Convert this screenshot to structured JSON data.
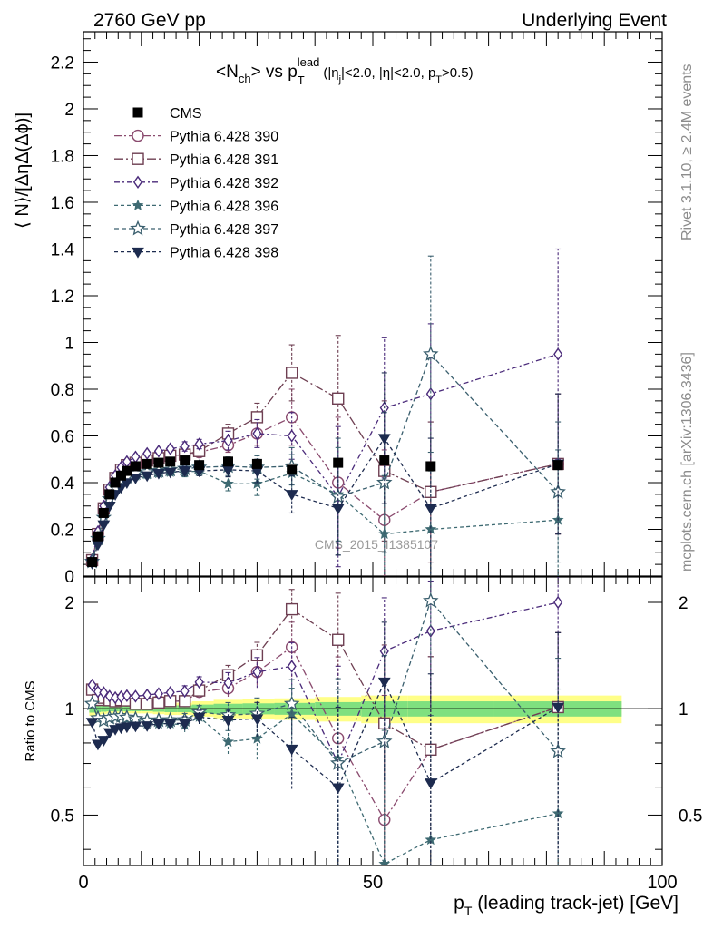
{
  "header": {
    "left_text": "2760 GeV pp",
    "right_text": "Underlying Event"
  },
  "side_labels": {
    "rivet": "Rivet 3.1.10, ≥ 2.4M events",
    "mcplots": "mcplots.cern.ch [arXiv:1306.3436]"
  },
  "watermark": "CMS_2015_I1385107",
  "chart_data": {
    "type": "scatter",
    "title": {
      "main": "<N",
      "sub1": "ch",
      "mid": "> vs p",
      "sub2": "T",
      "sup2": "lead",
      "cuts_a": "(|η",
      "sub3": "j",
      "cuts_b": "|<2.0, |η|<2.0, p",
      "sub4": "T",
      "cuts_c": ">0.5)"
    },
    "xlabel": {
      "main": "p",
      "sub": "T",
      "rest": " (leading track-jet) [GeV]"
    },
    "ylabel": "⟨ N⟩/[ΔηΔ(Δϕ)]",
    "ratio_ylabel": "Ratio to CMS",
    "xlim": [
      0,
      100
    ],
    "ylim": [
      0,
      2.33
    ],
    "ratio_ylim": [
      0.36,
      2.36
    ],
    "ratio_scale": "log",
    "x_ticks": [
      0,
      50,
      100
    ],
    "y_ticks": [
      "0",
      "0.2",
      "0.4",
      "0.6",
      "0.8",
      "1",
      "1.2",
      "1.4",
      "1.6",
      "1.8",
      "2",
      "2.2"
    ],
    "ratio_ticks": [
      "0.5",
      "1",
      "2"
    ],
    "legend_position": "top-left",
    "x": [
      1.5,
      2.5,
      3.5,
      4.5,
      5.5,
      6.5,
      7.5,
      9,
      11,
      13,
      15,
      17.5,
      20,
      25,
      30,
      36,
      44,
      52,
      60,
      82
    ],
    "data": {
      "name": "CMS",
      "values": [
        0.06,
        0.17,
        0.27,
        0.35,
        0.4,
        0.43,
        0.45,
        0.47,
        0.48,
        0.485,
        0.49,
        0.495,
        0.475,
        0.49,
        0.48,
        0.455,
        0.485,
        0.495,
        0.47,
        0.475
      ]
    },
    "series": [
      {
        "name": "Pythia 6.428 390",
        "color": "#8a4a6e",
        "marker": "circle-open",
        "dash": "8,3,2,3",
        "values": [
          0.068,
          0.18,
          0.29,
          0.37,
          0.42,
          0.455,
          0.475,
          0.49,
          0.5,
          0.51,
          0.515,
          0.52,
          0.53,
          0.56,
          0.61,
          0.68,
          0.4,
          0.24,
          0.36,
          0.48
        ],
        "errors": [
          0.005,
          0.01,
          0.01,
          0.01,
          0.01,
          0.01,
          0.01,
          0.01,
          0.01,
          0.01,
          0.01,
          0.01,
          0.02,
          0.03,
          0.05,
          0.12,
          0.28,
          0.3,
          0.3,
          0.3
        ]
      },
      {
        "name": "Pythia 6.428 391",
        "color": "#6e3f52",
        "marker": "square-open",
        "dash": "10,3,2,3",
        "values": [
          0.068,
          0.18,
          0.29,
          0.37,
          0.42,
          0.455,
          0.475,
          0.485,
          0.495,
          0.505,
          0.515,
          0.52,
          0.535,
          0.61,
          0.68,
          0.87,
          0.76,
          0.45,
          0.36,
          0.48
        ],
        "errors": [
          0.005,
          0.01,
          0.01,
          0.01,
          0.01,
          0.01,
          0.01,
          0.01,
          0.01,
          0.01,
          0.01,
          0.02,
          0.02,
          0.04,
          0.06,
          0.12,
          0.27,
          0.3,
          0.3,
          0.3
        ]
      },
      {
        "name": "Pythia 6.428 392",
        "color": "#4a2a7a",
        "marker": "diamond-open",
        "dash": "6,3,2,3",
        "values": [
          0.07,
          0.19,
          0.3,
          0.38,
          0.43,
          0.465,
          0.49,
          0.51,
          0.525,
          0.535,
          0.545,
          0.555,
          0.565,
          0.58,
          0.61,
          0.6,
          0.34,
          0.72,
          0.78,
          0.95
        ],
        "errors": [
          0.005,
          0.01,
          0.01,
          0.01,
          0.01,
          0.01,
          0.01,
          0.01,
          0.01,
          0.01,
          0.01,
          0.02,
          0.02,
          0.04,
          0.06,
          0.1,
          0.3,
          0.3,
          0.3,
          0.45
        ]
      },
      {
        "name": "Pythia 6.428 396",
        "color": "#3e6a72",
        "marker": "star-filled-small",
        "dash": "4,3",
        "values": [
          0.062,
          0.16,
          0.25,
          0.33,
          0.38,
          0.41,
          0.42,
          0.43,
          0.435,
          0.44,
          0.445,
          0.445,
          0.45,
          0.395,
          0.395,
          0.44,
          0.35,
          0.18,
          0.2,
          0.24
        ],
        "errors": [
          0.005,
          0.01,
          0.01,
          0.01,
          0.01,
          0.01,
          0.01,
          0.01,
          0.01,
          0.01,
          0.01,
          0.02,
          0.02,
          0.03,
          0.05,
          0.08,
          0.2,
          0.25,
          0.25,
          0.3
        ]
      },
      {
        "name": "Pythia 6.428 397",
        "color": "#3a5f6e",
        "marker": "star-open",
        "dash": "5,3",
        "values": [
          0.062,
          0.16,
          0.25,
          0.33,
          0.38,
          0.41,
          0.425,
          0.44,
          0.445,
          0.45,
          0.455,
          0.46,
          0.465,
          0.47,
          0.465,
          0.47,
          0.34,
          0.4,
          0.95,
          0.36
        ],
        "errors": [
          0.005,
          0.01,
          0.01,
          0.01,
          0.01,
          0.01,
          0.01,
          0.01,
          0.01,
          0.01,
          0.01,
          0.02,
          0.02,
          0.04,
          0.05,
          0.08,
          0.25,
          0.3,
          0.42,
          0.3
        ]
      },
      {
        "name": "Pythia 6.428 398",
        "color": "#1d2b4f",
        "marker": "triangle-down",
        "dash": "4,3",
        "values": [
          0.055,
          0.135,
          0.22,
          0.3,
          0.35,
          0.38,
          0.4,
          0.42,
          0.43,
          0.44,
          0.445,
          0.45,
          0.45,
          0.455,
          0.45,
          0.35,
          0.29,
          0.59,
          0.29,
          0.48
        ],
        "errors": [
          0.005,
          0.01,
          0.01,
          0.01,
          0.01,
          0.01,
          0.01,
          0.01,
          0.01,
          0.01,
          0.01,
          0.02,
          0.02,
          0.03,
          0.05,
          0.08,
          0.2,
          0.28,
          0.3,
          0.3
        ]
      }
    ]
  }
}
